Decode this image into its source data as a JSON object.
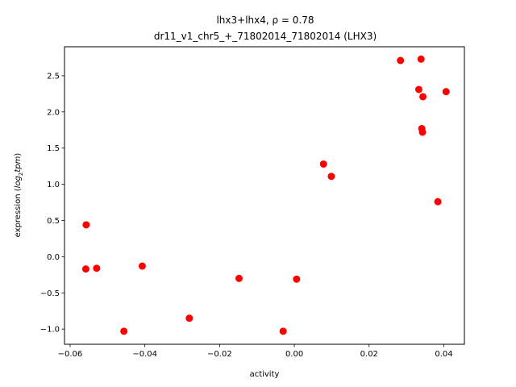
{
  "chart_data": {
    "type": "scatter",
    "title_line1": "lhx3+lhx4, ρ = 0.78",
    "title_line2": "dr11_v1_chr5_+_71802014_71802014 (LHX3)",
    "xlabel": "activity",
    "ylabel_prefix": "expression (",
    "ylabel_math": "log",
    "ylabel_sub": "2",
    "ylabel_suffix_math": "tpm",
    "ylabel_close": ")",
    "xlim": [
      -0.0615,
      0.0455
    ],
    "ylim": [
      -1.21,
      2.9
    ],
    "xticks": [
      -0.06,
      -0.04,
      -0.02,
      0.0,
      0.02,
      0.04
    ],
    "xtick_labels": [
      "−0.06",
      "−0.04",
      "−0.02",
      "0.00",
      "0.02",
      "0.04"
    ],
    "yticks": [
      -1.0,
      -0.5,
      0.0,
      0.5,
      1.0,
      1.5,
      2.0,
      2.5
    ],
    "ytick_labels": [
      "−1.0",
      "−0.5",
      "0.0",
      "0.5",
      "1.0",
      "1.5",
      "2.0",
      "2.5"
    ],
    "marker_color": "#ff0000",
    "points": [
      {
        "x": -0.0557,
        "y": 0.44
      },
      {
        "x": -0.0558,
        "y": -0.17
      },
      {
        "x": -0.0529,
        "y": -0.16
      },
      {
        "x": -0.0407,
        "y": -0.13
      },
      {
        "x": -0.0456,
        "y": -1.03
      },
      {
        "x": -0.0281,
        "y": -0.85
      },
      {
        "x": -0.0148,
        "y": -0.3
      },
      {
        "x": -0.003,
        "y": -1.03
      },
      {
        "x": 0.0006,
        "y": -0.31
      },
      {
        "x": 0.0078,
        "y": 1.28
      },
      {
        "x": 0.0099,
        "y": 1.11
      },
      {
        "x": 0.0284,
        "y": 2.71
      },
      {
        "x": 0.0339,
        "y": 2.73
      },
      {
        "x": 0.0333,
        "y": 2.31
      },
      {
        "x": 0.0344,
        "y": 2.21
      },
      {
        "x": 0.0406,
        "y": 2.28
      },
      {
        "x": 0.0341,
        "y": 1.77
      },
      {
        "x": 0.0343,
        "y": 1.72
      },
      {
        "x": 0.0384,
        "y": 0.76
      }
    ]
  }
}
